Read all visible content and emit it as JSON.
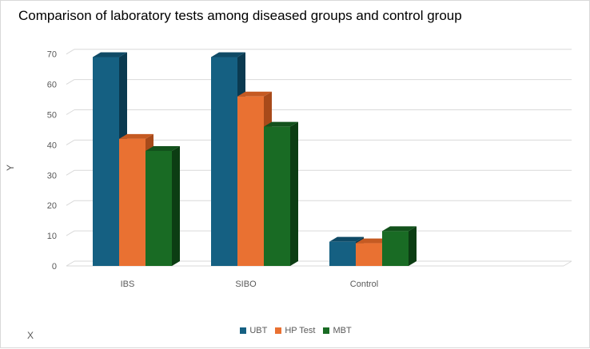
{
  "chart_data": {
    "type": "bar",
    "title": "Comparison of laboratory tests among diseased groups and control group",
    "xlabel": "X",
    "ylabel": "Y",
    "categories": [
      "IBS",
      "SIBO",
      "Control"
    ],
    "series": [
      {
        "name": "UBT",
        "values": [
          69,
          69,
          8
        ],
        "color": "#156082",
        "side": "#0b3a50",
        "top": "#0f4a66"
      },
      {
        "name": "HP Test",
        "values": [
          42,
          56,
          7.5
        ],
        "color": "#e97132",
        "side": "#a84a1a",
        "top": "#c55a22"
      },
      {
        "name": "MBT",
        "values": [
          38,
          46,
          11.5
        ],
        "color": "#196b24",
        "side": "#0c3d13",
        "top": "#13521c"
      }
    ],
    "yticks": [
      0,
      10,
      20,
      30,
      40,
      50,
      60,
      70
    ],
    "ylim": [
      0,
      70
    ],
    "grid": true,
    "legend_position": "bottom",
    "style": "3d-clustered-column"
  }
}
